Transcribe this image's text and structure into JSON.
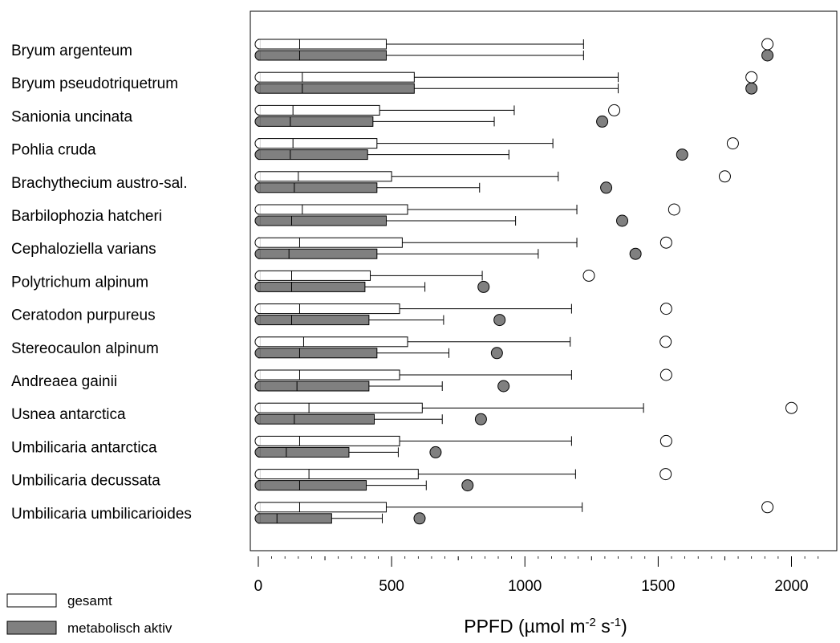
{
  "chart_data": {
    "type": "boxplot",
    "orientation": "horizontal",
    "xlabel": {
      "prefix": "PPFD (µmol m",
      "exp1": "-2",
      "mid": " s",
      "exp2": "-1",
      "suffix": ")"
    },
    "xlim": [
      -30,
      2170
    ],
    "xticks": [
      0,
      500,
      1000,
      1500,
      2000
    ],
    "xticks_minor": [
      250,
      750,
      1250,
      1750
    ],
    "legend": {
      "placement": "bottom-left",
      "items": [
        {
          "label": "gesamt",
          "color": "#ffffff"
        },
        {
          "label": "metabolisch aktiv",
          "color": "#808080"
        }
      ]
    },
    "colors": {
      "gesamt": "#ffffff",
      "aktiv": "#808080",
      "stroke": "#000000"
    },
    "categories": [
      "Bryum argenteum",
      "Bryum pseudotriquetrum",
      "Sanionia uncinata",
      "Pohlia cruda",
      "Brachythecium austro-sal.",
      "Barbilophozia hatcheri",
      "Cephaloziella varians",
      "Polytrichum alpinum",
      "Ceratodon purpureus",
      "Stereocaulon alpinum",
      "Andreaea gainii",
      "Usnea antarctica",
      "Umbilicaria antarctica",
      "Umbilicaria decussata",
      "Umbilicaria umbilicarioides"
    ],
    "series": [
      {
        "name": "gesamt",
        "boxes": [
          {
            "min": 0,
            "q1": 5,
            "median": 155,
            "q3": 480,
            "whisker": 1220,
            "outlier": 1910
          },
          {
            "min": 0,
            "q1": 5,
            "median": 165,
            "q3": 585,
            "whisker": 1350,
            "outlier": 1850
          },
          {
            "min": 0,
            "q1": 5,
            "median": 130,
            "q3": 455,
            "whisker": 960,
            "outlier": 1335
          },
          {
            "min": 0,
            "q1": 5,
            "median": 130,
            "q3": 445,
            "whisker": 1105,
            "outlier": 1780
          },
          {
            "min": 0,
            "q1": 5,
            "median": 150,
            "q3": 500,
            "whisker": 1125,
            "outlier": 1750
          },
          {
            "min": 0,
            "q1": 5,
            "median": 165,
            "q3": 560,
            "whisker": 1195,
            "outlier": 1560
          },
          {
            "min": 0,
            "q1": 5,
            "median": 155,
            "q3": 540,
            "whisker": 1195,
            "outlier": 1530
          },
          {
            "min": 0,
            "q1": 5,
            "median": 125,
            "q3": 420,
            "whisker": 840,
            "outlier": 1240
          },
          {
            "min": 0,
            "q1": 5,
            "median": 155,
            "q3": 530,
            "whisker": 1175,
            "outlier": 1530
          },
          {
            "min": 0,
            "q1": 5,
            "median": 170,
            "q3": 560,
            "whisker": 1170,
            "outlier": 1528
          },
          {
            "min": 0,
            "q1": 5,
            "median": 155,
            "q3": 530,
            "whisker": 1175,
            "outlier": 1530
          },
          {
            "min": 0,
            "q1": 5,
            "median": 190,
            "q3": 615,
            "whisker": 1445,
            "outlier": 2000
          },
          {
            "min": 0,
            "q1": 5,
            "median": 155,
            "q3": 530,
            "whisker": 1175,
            "outlier": 1530
          },
          {
            "min": 0,
            "q1": 5,
            "median": 190,
            "q3": 600,
            "whisker": 1190,
            "outlier": 1528
          },
          {
            "min": 0,
            "q1": 5,
            "median": 155,
            "q3": 480,
            "whisker": 1215,
            "outlier": 1910
          }
        ]
      },
      {
        "name": "metabolisch aktiv",
        "boxes": [
          {
            "min": 0,
            "q1": 5,
            "median": 155,
            "q3": 480,
            "whisker": 1220,
            "outlier": 1910
          },
          {
            "min": 0,
            "q1": 5,
            "median": 165,
            "q3": 585,
            "whisker": 1350,
            "outlier": 1850
          },
          {
            "min": 0,
            "q1": 5,
            "median": 120,
            "q3": 430,
            "whisker": 885,
            "outlier": 1290
          },
          {
            "min": 0,
            "q1": 5,
            "median": 120,
            "q3": 410,
            "whisker": 940,
            "outlier": 1590
          },
          {
            "min": 0,
            "q1": 5,
            "median": 135,
            "q3": 445,
            "whisker": 830,
            "outlier": 1305
          },
          {
            "min": 0,
            "q1": 5,
            "median": 125,
            "q3": 480,
            "whisker": 965,
            "outlier": 1365
          },
          {
            "min": 0,
            "q1": 5,
            "median": 115,
            "q3": 445,
            "whisker": 1050,
            "outlier": 1415
          },
          {
            "min": 0,
            "q1": 5,
            "median": 125,
            "q3": 400,
            "whisker": 625,
            "outlier": 845
          },
          {
            "min": 0,
            "q1": 5,
            "median": 125,
            "q3": 415,
            "whisker": 695,
            "outlier": 905
          },
          {
            "min": 0,
            "q1": 5,
            "median": 155,
            "q3": 445,
            "whisker": 715,
            "outlier": 895
          },
          {
            "min": 0,
            "q1": 5,
            "median": 145,
            "q3": 415,
            "whisker": 690,
            "outlier": 920
          },
          {
            "min": 0,
            "q1": 5,
            "median": 135,
            "q3": 435,
            "whisker": 690,
            "outlier": 835
          },
          {
            "min": 0,
            "q1": 5,
            "median": 105,
            "q3": 340,
            "whisker": 525,
            "outlier": 665
          },
          {
            "min": 0,
            "q1": 5,
            "median": 155,
            "q3": 405,
            "whisker": 630,
            "outlier": 785
          },
          {
            "min": 0,
            "q1": 5,
            "median": 70,
            "q3": 275,
            "whisker": 465,
            "outlier": 605
          }
        ]
      }
    ]
  }
}
